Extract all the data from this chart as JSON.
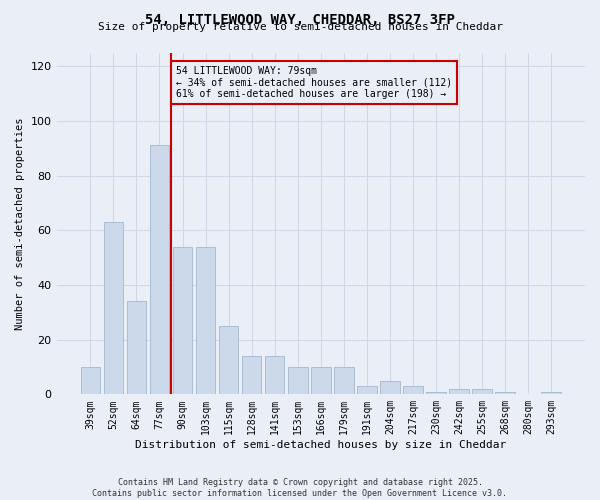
{
  "title1": "54, LITTLEWOOD WAY, CHEDDAR, BS27 3FP",
  "title2": "Size of property relative to semi-detached houses in Cheddar",
  "xlabel": "Distribution of semi-detached houses by size in Cheddar",
  "ylabel": "Number of semi-detached properties",
  "categories": [
    "39sqm",
    "52sqm",
    "64sqm",
    "77sqm",
    "90sqm",
    "103sqm",
    "115sqm",
    "128sqm",
    "141sqm",
    "153sqm",
    "166sqm",
    "179sqm",
    "191sqm",
    "204sqm",
    "217sqm",
    "230sqm",
    "242sqm",
    "255sqm",
    "268sqm",
    "280sqm",
    "293sqm"
  ],
  "values": [
    10,
    63,
    34,
    91,
    54,
    54,
    25,
    14,
    14,
    10,
    10,
    10,
    3,
    5,
    3,
    1,
    2,
    2,
    1,
    0,
    1
  ],
  "bar_color": "#ccd9ea",
  "bar_edge_color": "#aabdd4",
  "vline_x": 3.5,
  "vline_color": "#cc0000",
  "annotation_text": "54 LITTLEWOOD WAY: 79sqm\n← 34% of semi-detached houses are smaller (112)\n61% of semi-detached houses are larger (198) →",
  "annotation_box_color": "#cc0000",
  "ylim": [
    0,
    125
  ],
  "yticks": [
    0,
    20,
    40,
    60,
    80,
    100,
    120
  ],
  "grid_color": "#d0d8e8",
  "background_color": "#eaeff7",
  "footer_text": "Contains HM Land Registry data © Crown copyright and database right 2025.\nContains public sector information licensed under the Open Government Licence v3.0."
}
